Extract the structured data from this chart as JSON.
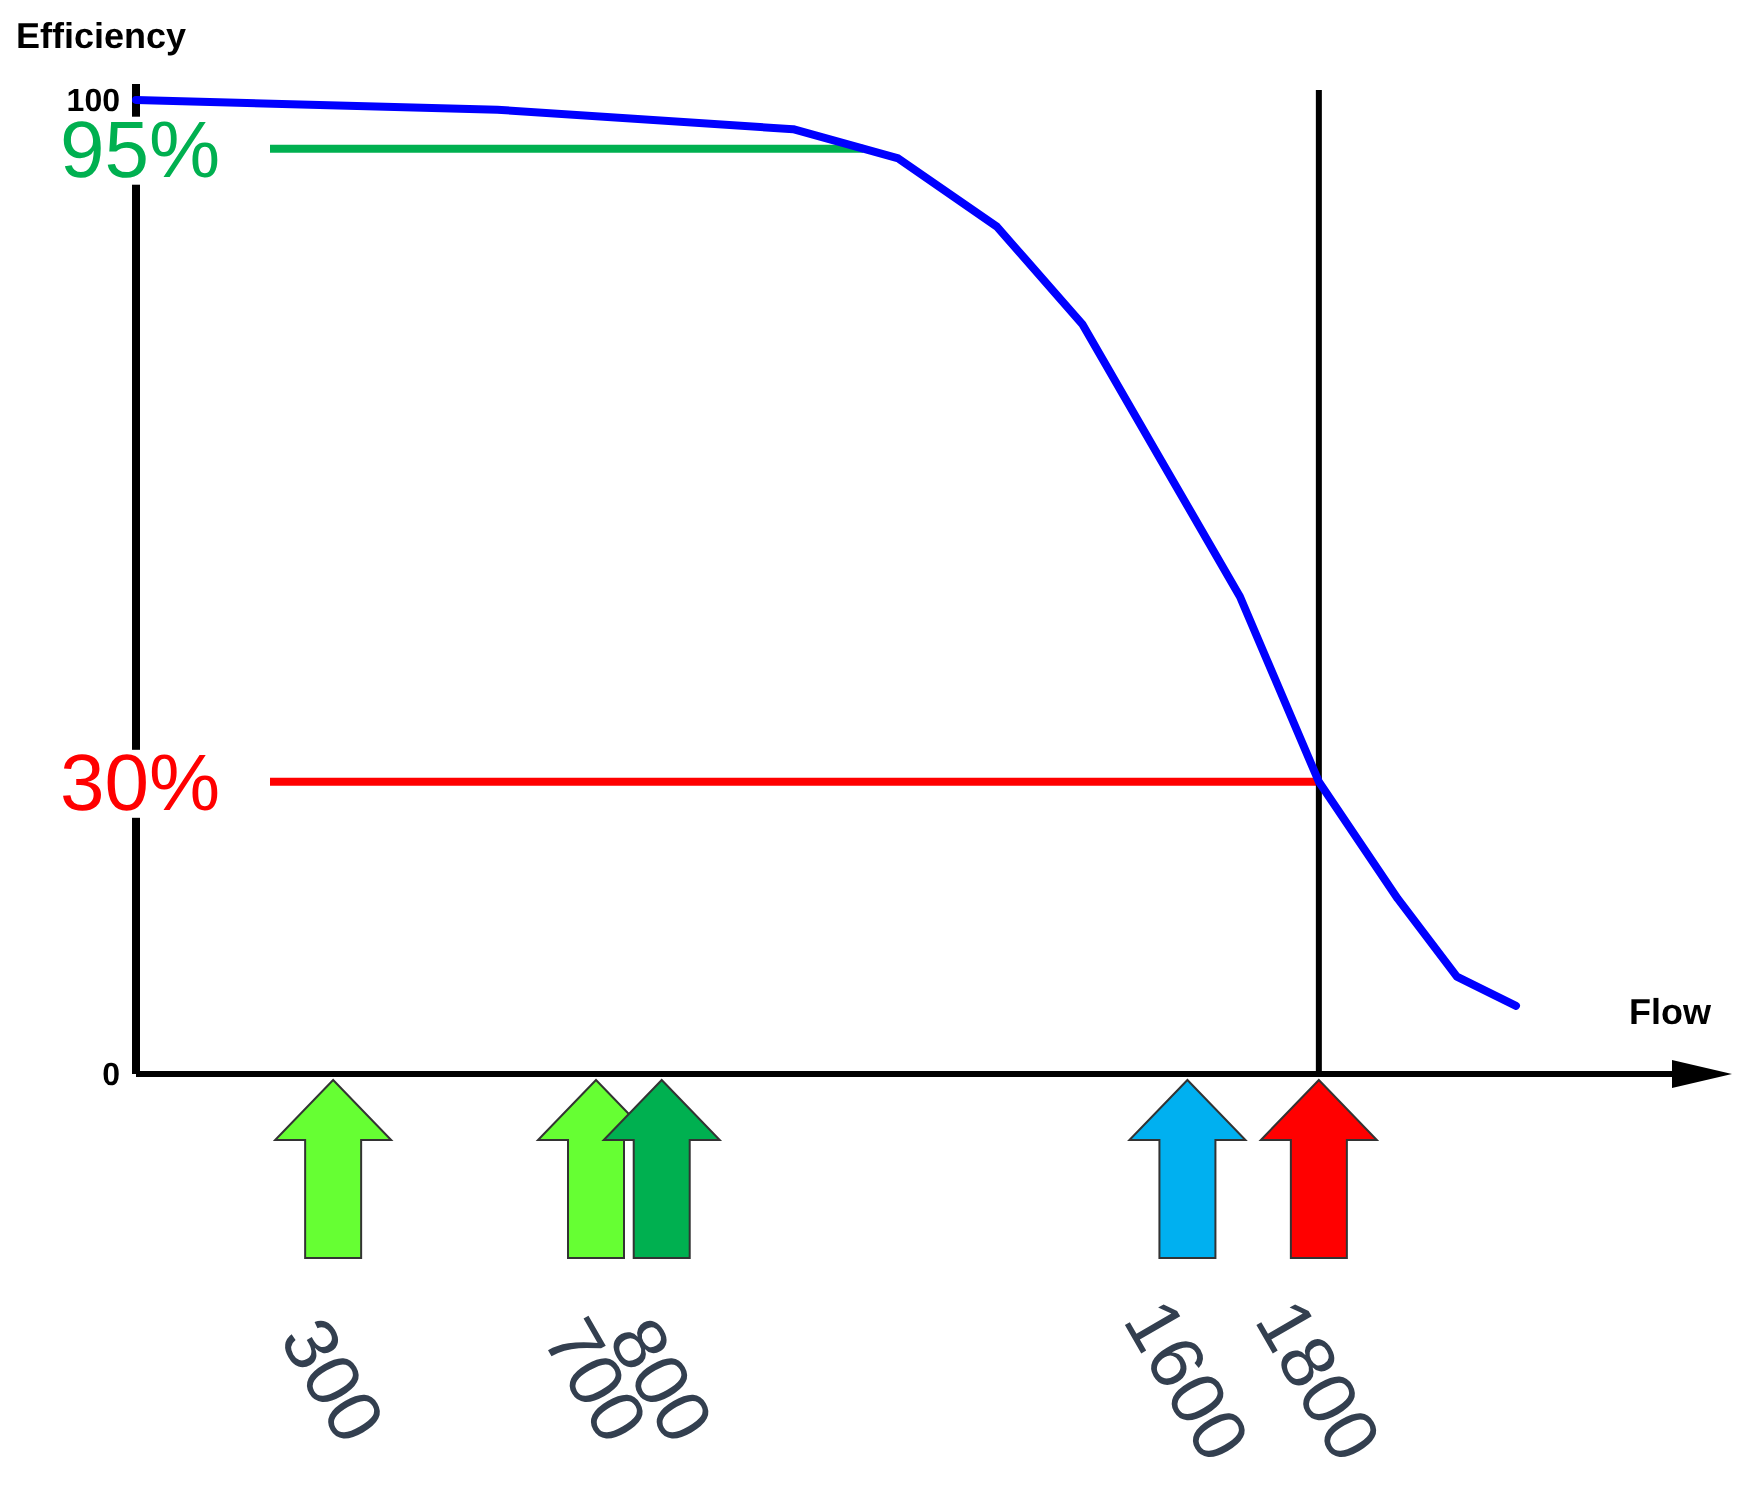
{
  "chart_data": {
    "type": "line",
    "xlabel": "Flow",
    "ylabel": "Efficiency",
    "x": [
      0,
      550,
      1000,
      1160,
      1310,
      1440,
      1560,
      1680,
      1800,
      1920,
      2010,
      2100
    ],
    "series": [
      {
        "color": "#0000ff",
        "values": [
          100,
          99,
          97,
          94,
          87,
          77,
          63,
          49,
          30,
          18,
          10,
          7
        ]
      }
    ],
    "xlim": [
      0,
      2380
    ],
    "ylim": [
      0,
      100
    ],
    "xticks": [
      300,
      700,
      800,
      1600,
      1800
    ],
    "yticks": [
      0,
      100
    ],
    "ref_lines": [
      {
        "axis": "y",
        "value": 95,
        "label": "95%",
        "color": "#00b050"
      },
      {
        "axis": "y",
        "value": 30,
        "label": "30%",
        "color": "#ff0000"
      },
      {
        "axis": "x",
        "value": 1800,
        "color": "#000000"
      }
    ],
    "grid": false,
    "marker": "none",
    "line_style": "solid"
  }
}
